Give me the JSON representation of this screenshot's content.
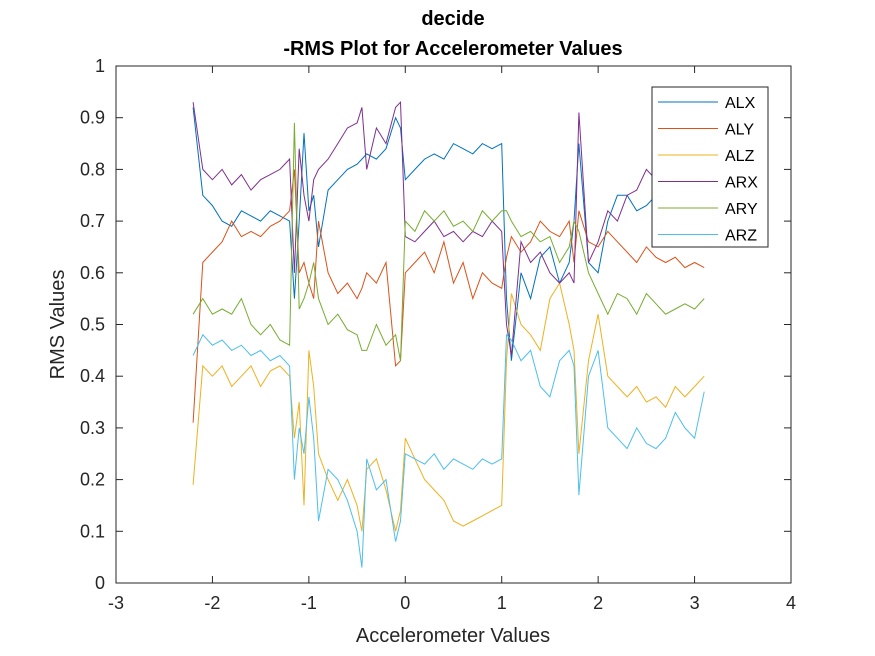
{
  "chart_data": {
    "type": "line",
    "title": "decide",
    "subtitle": "-RMS Plot for Accelerometer Values",
    "xlabel": "Accelerometer Values",
    "ylabel": "RMS Values",
    "xlim": [
      -3,
      4
    ],
    "ylim": [
      0,
      1
    ],
    "xticks": [
      -3,
      -2,
      -1,
      0,
      1,
      2,
      3,
      4
    ],
    "yticks": [
      0,
      0.1,
      0.2,
      0.3,
      0.4,
      0.5,
      0.6,
      0.7,
      0.8,
      0.9,
      1
    ],
    "xtick_labels": [
      "-3",
      "-2",
      "-1",
      "0",
      "1",
      "2",
      "3",
      "4"
    ],
    "ytick_labels": [
      "0",
      "0.1",
      "0.2",
      "0.3",
      "0.4",
      "0.5",
      "0.6",
      "0.7",
      "0.8",
      "0.9",
      "1"
    ],
    "grid": false,
    "legend_position": "top-right",
    "x": [
      -2.2,
      -2.1,
      -2.0,
      -1.9,
      -1.8,
      -1.7,
      -1.6,
      -1.5,
      -1.4,
      -1.3,
      -1.2,
      -1.15,
      -1.1,
      -1.05,
      -1.0,
      -0.95,
      -0.9,
      -0.8,
      -0.7,
      -0.6,
      -0.5,
      -0.45,
      -0.4,
      -0.3,
      -0.2,
      -0.1,
      -0.05,
      0.0,
      0.1,
      0.2,
      0.3,
      0.4,
      0.5,
      0.6,
      0.7,
      0.8,
      0.9,
      1.0,
      1.05,
      1.1,
      1.2,
      1.3,
      1.4,
      1.5,
      1.6,
      1.7,
      1.75,
      1.8,
      1.9,
      2.0,
      2.1,
      2.2,
      2.3,
      2.4,
      2.5,
      2.6,
      2.7,
      2.8,
      2.9,
      3.0,
      3.1
    ],
    "series": [
      {
        "name": "ALX",
        "color": "#0072BD",
        "values": [
          0.92,
          0.75,
          0.73,
          0.7,
          0.69,
          0.72,
          0.71,
          0.7,
          0.72,
          0.71,
          0.7,
          0.55,
          0.7,
          0.87,
          0.72,
          0.75,
          0.65,
          0.76,
          0.78,
          0.8,
          0.81,
          0.82,
          0.83,
          0.82,
          0.84,
          0.9,
          0.88,
          0.78,
          0.8,
          0.82,
          0.83,
          0.82,
          0.85,
          0.84,
          0.83,
          0.85,
          0.84,
          0.85,
          0.55,
          0.43,
          0.6,
          0.55,
          0.63,
          0.65,
          0.58,
          0.62,
          0.7,
          0.85,
          0.62,
          0.6,
          0.7,
          0.75,
          0.75,
          0.72,
          0.73,
          0.75,
          0.72,
          0.7,
          0.72,
          0.73,
          0.75
        ]
      },
      {
        "name": "ALY",
        "color": "#D95319",
        "values": [
          0.31,
          0.62,
          0.64,
          0.66,
          0.7,
          0.67,
          0.68,
          0.67,
          0.69,
          0.7,
          0.72,
          0.8,
          0.6,
          0.62,
          0.58,
          0.55,
          0.7,
          0.6,
          0.56,
          0.58,
          0.55,
          0.57,
          0.6,
          0.58,
          0.62,
          0.42,
          0.43,
          0.6,
          0.62,
          0.64,
          0.6,
          0.66,
          0.58,
          0.62,
          0.55,
          0.6,
          0.58,
          0.57,
          0.63,
          0.67,
          0.64,
          0.66,
          0.7,
          0.68,
          0.67,
          0.7,
          0.62,
          0.72,
          0.66,
          0.65,
          0.68,
          0.66,
          0.64,
          0.62,
          0.65,
          0.63,
          0.62,
          0.63,
          0.61,
          0.62,
          0.61
        ]
      },
      {
        "name": "ALZ",
        "color": "#EDB120",
        "values": [
          0.19,
          0.42,
          0.4,
          0.42,
          0.38,
          0.4,
          0.42,
          0.38,
          0.41,
          0.42,
          0.4,
          0.28,
          0.35,
          0.15,
          0.45,
          0.38,
          0.25,
          0.2,
          0.16,
          0.2,
          0.15,
          0.1,
          0.22,
          0.24,
          0.18,
          0.1,
          0.14,
          0.28,
          0.24,
          0.2,
          0.18,
          0.16,
          0.12,
          0.11,
          0.12,
          0.13,
          0.14,
          0.15,
          0.43,
          0.56,
          0.5,
          0.48,
          0.45,
          0.55,
          0.58,
          0.5,
          0.45,
          0.25,
          0.43,
          0.52,
          0.4,
          0.38,
          0.36,
          0.38,
          0.35,
          0.36,
          0.34,
          0.38,
          0.36,
          0.38,
          0.4
        ]
      },
      {
        "name": "ARX",
        "color": "#7E2F8E",
        "values": [
          0.93,
          0.8,
          0.78,
          0.8,
          0.77,
          0.79,
          0.76,
          0.78,
          0.79,
          0.8,
          0.82,
          0.6,
          0.84,
          0.75,
          0.7,
          0.78,
          0.8,
          0.82,
          0.85,
          0.88,
          0.89,
          0.92,
          0.8,
          0.88,
          0.85,
          0.92,
          0.93,
          0.67,
          0.66,
          0.68,
          0.7,
          0.67,
          0.68,
          0.66,
          0.68,
          0.67,
          0.7,
          0.68,
          0.5,
          0.44,
          0.66,
          0.62,
          0.64,
          0.6,
          0.58,
          0.6,
          0.58,
          0.91,
          0.62,
          0.66,
          0.72,
          0.7,
          0.75,
          0.76,
          0.8,
          0.78,
          0.76,
          0.8,
          0.82,
          0.8,
          0.82
        ]
      },
      {
        "name": "ARY",
        "color": "#77AC30",
        "values": [
          0.52,
          0.55,
          0.52,
          0.53,
          0.52,
          0.55,
          0.5,
          0.48,
          0.5,
          0.47,
          0.46,
          0.89,
          0.53,
          0.55,
          0.58,
          0.62,
          0.55,
          0.5,
          0.52,
          0.49,
          0.48,
          0.45,
          0.45,
          0.5,
          0.46,
          0.48,
          0.43,
          0.7,
          0.68,
          0.72,
          0.7,
          0.72,
          0.69,
          0.7,
          0.68,
          0.72,
          0.7,
          0.72,
          0.72,
          0.7,
          0.67,
          0.68,
          0.66,
          0.67,
          0.62,
          0.65,
          0.7,
          0.68,
          0.6,
          0.56,
          0.52,
          0.56,
          0.55,
          0.52,
          0.56,
          0.54,
          0.52,
          0.53,
          0.54,
          0.53,
          0.55
        ]
      },
      {
        "name": "ARZ",
        "color": "#4DBEEE",
        "values": [
          0.44,
          0.48,
          0.46,
          0.47,
          0.45,
          0.46,
          0.44,
          0.45,
          0.43,
          0.44,
          0.42,
          0.2,
          0.3,
          0.25,
          0.36,
          0.28,
          0.12,
          0.22,
          0.2,
          0.16,
          0.1,
          0.03,
          0.24,
          0.18,
          0.2,
          0.08,
          0.12,
          0.25,
          0.24,
          0.23,
          0.25,
          0.22,
          0.24,
          0.23,
          0.22,
          0.24,
          0.23,
          0.24,
          0.48,
          0.47,
          0.43,
          0.45,
          0.38,
          0.36,
          0.43,
          0.45,
          0.42,
          0.17,
          0.4,
          0.45,
          0.3,
          0.28,
          0.26,
          0.3,
          0.27,
          0.26,
          0.28,
          0.33,
          0.3,
          0.28,
          0.37
        ]
      }
    ]
  }
}
